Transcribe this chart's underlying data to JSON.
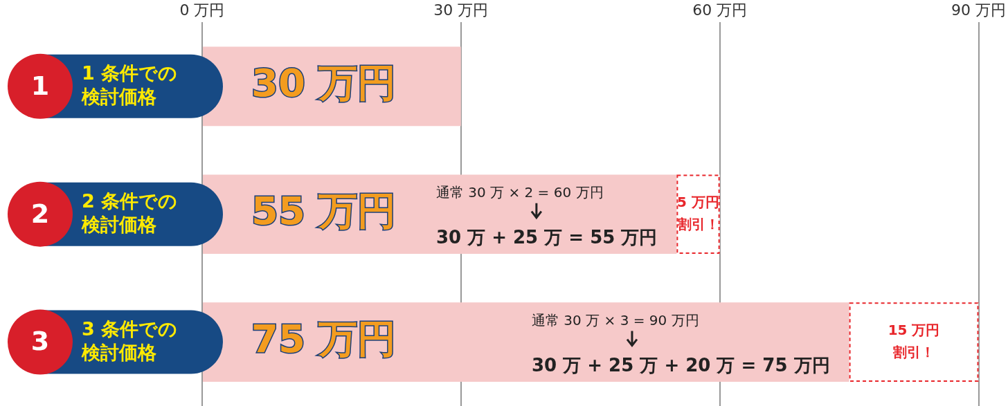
{
  "chart_data": {
    "type": "bar",
    "orientation": "horizontal",
    "stacked": true,
    "categories": [
      "1 条件での検討価格",
      "2 条件での検討価格",
      "3 条件での検討価格"
    ],
    "series": [
      {
        "color": "#f6c9c9",
        "values": [
          30,
          55,
          75
        ],
        "value_labels": [
          "30 万円",
          "55 万円",
          "75 万円"
        ]
      },
      {
        "color": "#e8262b",
        "line_style": "dashed",
        "values": [
          null,
          5,
          15
        ],
        "value_labels": [
          null,
          "5 万円割引！",
          "15 万円割引！"
        ]
      }
    ],
    "xlim": [
      0,
      90
    ],
    "xticks": [
      {
        "value": 0,
        "label": "0 万円"
      },
      {
        "value": 30,
        "label": "30 万円"
      },
      {
        "value": 60,
        "label": "60 万円"
      },
      {
        "value": 90,
        "label": "90 万円"
      }
    ],
    "grid": "x",
    "legend": false,
    "annotations": [
      "1",
      "2",
      "3",
      "通常 30 万 × 2 = 60 万円",
      "30 万 + 25 万 = 55 万円",
      "通常 30 万 × 3 = 90 万円",
      "30 万 + 25 万 + 20 万 = 75 万円"
    ]
  }
}
